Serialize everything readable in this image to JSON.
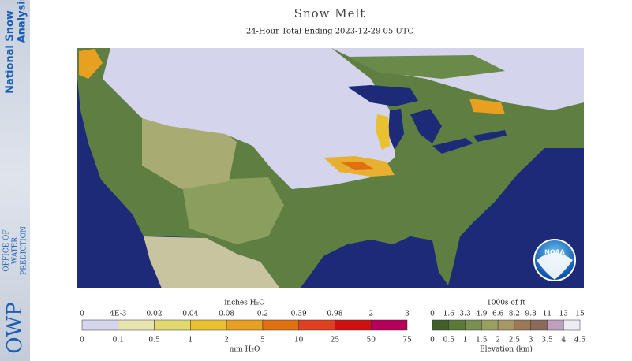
{
  "sidebar": {
    "product": [
      "National Snow",
      "Analysis"
    ],
    "org_abbr": "OWP",
    "org_name": [
      "OFFICE OF",
      "WATER",
      "PREDICTION"
    ]
  },
  "header": {
    "title": "Snow Melt",
    "subtitle": "24-Hour Total Ending 2023-12-29 05 UTC"
  },
  "logo": "NOAA",
  "snow_legend": {
    "top_unit": "inches H₂O",
    "top_labels": [
      "0",
      "4E-3",
      "0.02",
      "0.04",
      "0.08",
      "0.2",
      "0.39",
      "0.98",
      "2",
      "3"
    ],
    "bottom_labels": [
      "0",
      "0.1",
      "0.5",
      "1",
      "2",
      "5",
      "10",
      "25",
      "50",
      "75"
    ],
    "bottom_unit": "mm H₂O"
  },
  "elevation_legend": {
    "top_unit": "1000s of ft",
    "top_labels": [
      "0",
      "1.6",
      "3.3",
      "4.9",
      "6.6",
      "8.2",
      "9.8",
      "11",
      "13",
      "15"
    ],
    "bottom_labels": [
      "0",
      "0.5",
      "1",
      "1.5",
      "2",
      "2.5",
      "3",
      "3.5",
      "4",
      "4.5"
    ],
    "bottom_unit": "Elevation (km)"
  }
}
